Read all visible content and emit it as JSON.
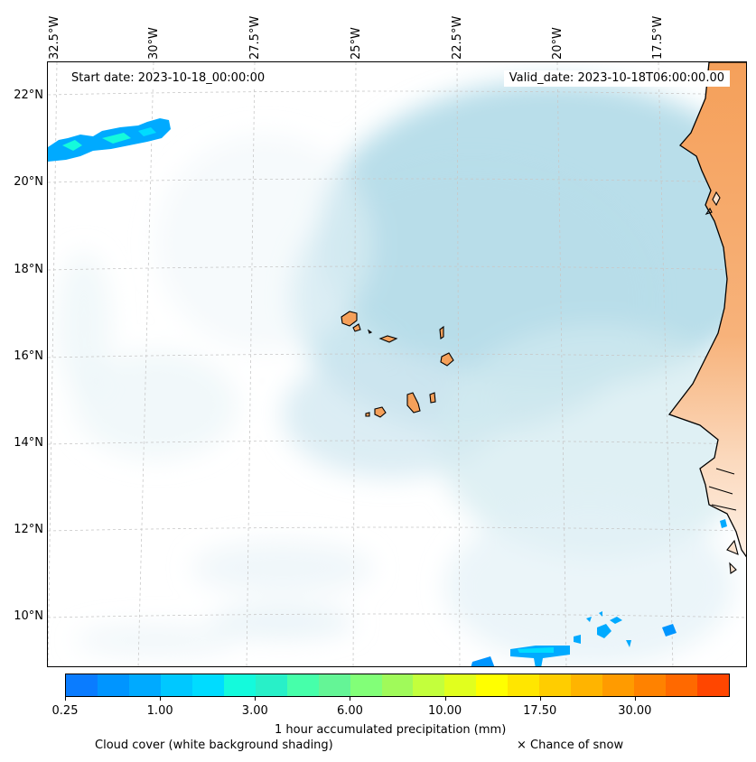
{
  "map": {
    "start_date": "Start date: 2023-10-18_00:00:00",
    "valid_date": "Valid_date: 2023-10-18T06:00:00.00",
    "latitude_labels": [
      "22°N",
      "20°N",
      "18°N",
      "16°N",
      "14°N",
      "12°N",
      "10°N"
    ],
    "longitude_labels": [
      "32.5°W",
      "30°W",
      "27.5°W",
      "25°W",
      "22.5°W",
      "20°W",
      "17.5°W"
    ],
    "colors": {
      "land": "#f5a05a",
      "cloud": "#add8e6",
      "coastline": "#000000",
      "gridline": "#c8c8c8"
    }
  },
  "colorbar": {
    "title": "1 hour accumulated precipitation (mm)",
    "tick_labels": [
      "0.25",
      "1.00",
      "3.00",
      "6.00",
      "10.00",
      "17.50",
      "30.00"
    ],
    "colors": [
      "#0a7cff",
      "#0095ff",
      "#00aaff",
      "#00c8ff",
      "#00dcff",
      "#14fadc",
      "#28f0c8",
      "#46ffaa",
      "#64f596",
      "#82ff78",
      "#a0fa5a",
      "#c3ff3c",
      "#e1ff1e",
      "#ffff00",
      "#ffe600",
      "#ffcd00",
      "#ffb400",
      "#ff9b00",
      "#ff8200",
      "#ff6900",
      "#ff4600"
    ]
  },
  "legend": {
    "cloud_cover": "Cloud cover (white background shading)",
    "snow": "× Chance of snow"
  }
}
